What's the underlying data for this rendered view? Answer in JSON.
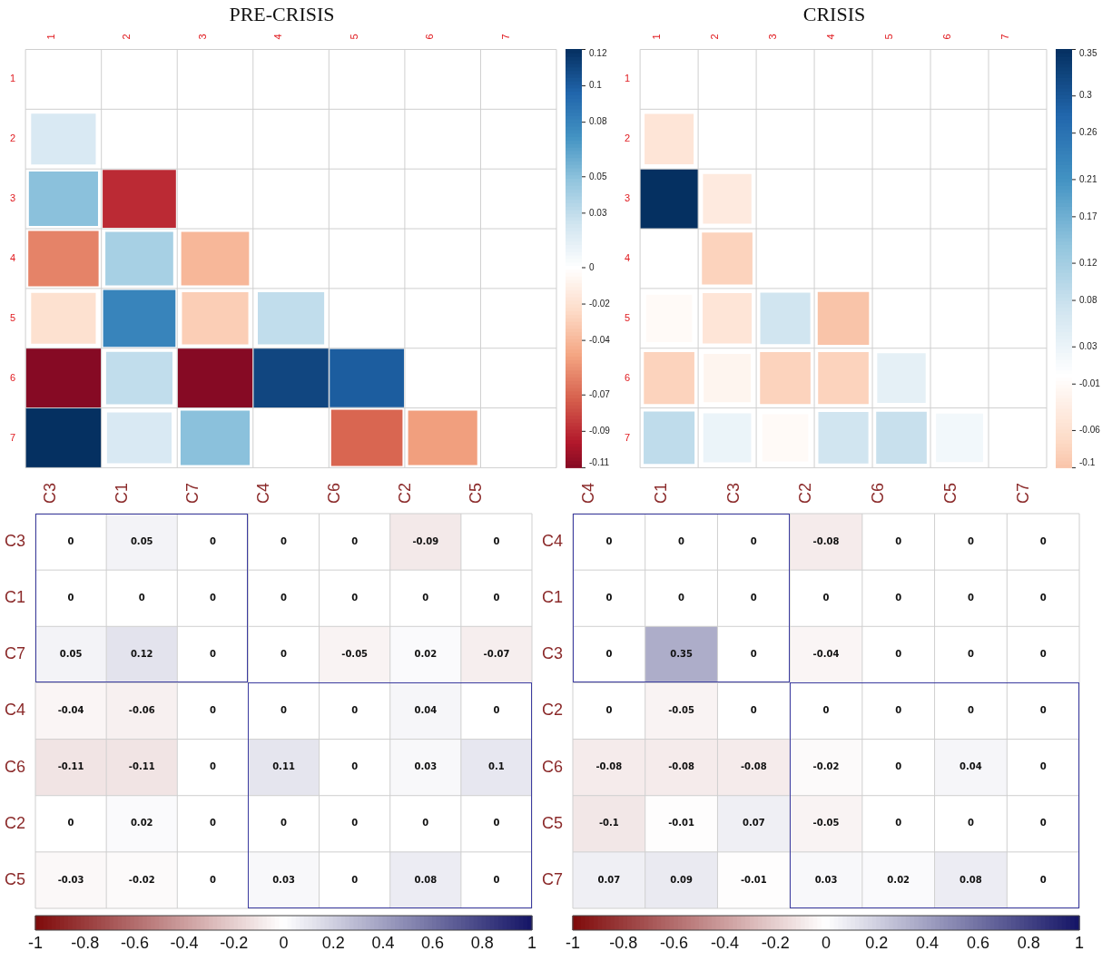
{
  "chart_data": [
    {
      "type": "heatmap",
      "title": "PRE-CRISIS",
      "marker": "square",
      "grid": true,
      "categories": [
        "1",
        "2",
        "3",
        "4",
        "5",
        "6",
        "7"
      ],
      "y_categories": [
        "1",
        "2",
        "3",
        "4",
        "5",
        "6",
        "7"
      ],
      "cells": [
        [
          null,
          null,
          null,
          null,
          null,
          null,
          null
        ],
        [
          0.02,
          null,
          null,
          null,
          null,
          null,
          null
        ],
        [
          0.05,
          -0.09,
          null,
          null,
          null,
          null,
          null
        ],
        [
          -0.06,
          0.04,
          -0.04,
          null,
          null,
          null,
          null
        ],
        [
          -0.02,
          0.08,
          -0.03,
          0.03,
          null,
          null,
          null
        ],
        [
          -0.11,
          0.03,
          -0.11,
          0.11,
          0.1,
          null,
          null
        ],
        [
          0.12,
          0.02,
          0.05,
          0,
          -0.07,
          -0.05,
          null
        ]
      ],
      "clim": [
        -0.11,
        0.12
      ],
      "cticks": [
        0.12,
        0.1,
        0.08,
        0.05,
        0.03,
        0,
        -0.02,
        -0.04,
        -0.07,
        -0.09,
        -0.11
      ]
    },
    {
      "type": "heatmap",
      "title": "CRISIS",
      "marker": "square",
      "grid": true,
      "categories": [
        "1",
        "2",
        "3",
        "4",
        "5",
        "6",
        "7"
      ],
      "y_categories": [
        "1",
        "2",
        "3",
        "4",
        "5",
        "6",
        "7"
      ],
      "cells": [
        [
          null,
          null,
          null,
          null,
          null,
          null,
          null
        ],
        [
          -0.05,
          null,
          null,
          null,
          null,
          null,
          null
        ],
        [
          0.35,
          -0.04,
          null,
          null,
          null,
          null,
          null
        ],
        [
          0,
          -0.08,
          0,
          null,
          null,
          null,
          null
        ],
        [
          -0.01,
          -0.05,
          0.07,
          -0.1,
          null,
          null,
          null
        ],
        [
          -0.08,
          -0.02,
          -0.08,
          -0.08,
          0.04,
          null,
          null
        ],
        [
          0.09,
          0.03,
          -0.01,
          0.07,
          0.08,
          0.02,
          null
        ]
      ],
      "clim": [
        -0.1,
        0.35
      ],
      "cticks": [
        0.35,
        0.3,
        0.26,
        0.21,
        0.17,
        0.12,
        0.08,
        0.03,
        -0.01,
        -0.06,
        -0.1
      ]
    },
    {
      "type": "heatmap",
      "grid": true,
      "data_labels": true,
      "categories": [
        "C3",
        "C1",
        "C7",
        "C4",
        "C6",
        "C2",
        "C5"
      ],
      "y_categories": [
        "C3",
        "C1",
        "C7",
        "C4",
        "C6",
        "C2",
        "C5"
      ],
      "cells": [
        [
          0,
          0.05,
          0,
          0,
          0,
          -0.09,
          0
        ],
        [
          0,
          0,
          0,
          0,
          0,
          0,
          0
        ],
        [
          0.05,
          0.12,
          0,
          0,
          -0.05,
          0.02,
          -0.07
        ],
        [
          -0.04,
          -0.06,
          0,
          0,
          0,
          0.04,
          0
        ],
        [
          -0.11,
          -0.11,
          0,
          0.11,
          0,
          0.03,
          0.1
        ],
        [
          0,
          0.02,
          0,
          0,
          0,
          0,
          0
        ],
        [
          -0.03,
          -0.02,
          0,
          0.03,
          0,
          0.08,
          0
        ]
      ],
      "clim": [
        -1,
        1
      ],
      "cticks": [
        -1,
        -0.8,
        -0.6,
        -0.4,
        -0.2,
        0,
        0.2,
        0.4,
        0.6,
        0.8,
        1
      ]
    },
    {
      "type": "heatmap",
      "grid": true,
      "data_labels": true,
      "categories": [
        "C4",
        "C1",
        "C3",
        "C2",
        "C6",
        "C5",
        "C7"
      ],
      "y_categories": [
        "C4",
        "C1",
        "C3",
        "C2",
        "C6",
        "C5",
        "C7"
      ],
      "cells": [
        [
          0,
          0,
          0,
          -0.08,
          0,
          0,
          0
        ],
        [
          0,
          0,
          0,
          0,
          0,
          0,
          0
        ],
        [
          0,
          0.35,
          0,
          -0.04,
          0,
          0,
          0
        ],
        [
          0,
          -0.05,
          0,
          0,
          0,
          0,
          0
        ],
        [
          -0.08,
          -0.08,
          -0.08,
          -0.02,
          0,
          0.04,
          0
        ],
        [
          -0.1,
          -0.01,
          0.07,
          -0.05,
          0,
          0,
          0
        ],
        [
          0.07,
          0.09,
          -0.01,
          0.03,
          0.02,
          0.08,
          0
        ]
      ],
      "clim": [
        -1,
        1
      ],
      "cticks": [
        -1,
        -0.8,
        -0.6,
        -0.4,
        -0.2,
        0,
        0.2,
        0.4,
        0.6,
        0.8,
        1
      ]
    }
  ]
}
